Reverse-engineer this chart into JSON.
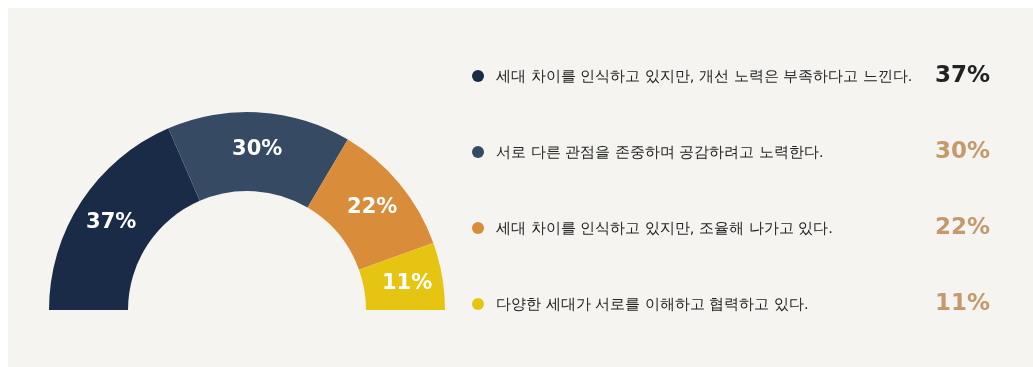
{
  "chart_data": {
    "type": "donut",
    "categories": [
      "세대 차이를 인식하고 있지만, 개선 노력은 부족하다고 느낀다.",
      "서로 다른 관점을 존중하며 공감하려고 노력한다.",
      "세대 차이를 인식하고 있지만, 조율해 나가고 있다.",
      "다양한 세대가 서로를 이해하고 협력하고 있다."
    ],
    "values": [
      37,
      30,
      22,
      11
    ],
    "colors": [
      "#1a2b47",
      "#364a63",
      "#d98c3a",
      "#e6c512"
    ],
    "value_labels": [
      "37%",
      "30%",
      "22%",
      "11%"
    ],
    "legend": "right"
  }
}
